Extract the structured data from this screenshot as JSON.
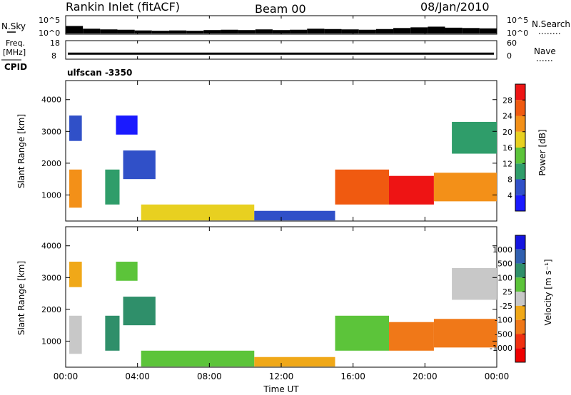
{
  "chart_data": [
    {
      "type": "line",
      "panel": "noise",
      "header": {
        "station": "Rankin Inlet (fitACF)",
        "beam": "Beam 00",
        "date": "08/Jan/2010"
      },
      "left_label": "N.Sky",
      "right_label": "N.Search",
      "left_ticks": [
        "10^5",
        "10^0"
      ],
      "right_ticks": [
        "10^5",
        "10^0"
      ],
      "x_ticks": [
        "00:00",
        "04:00",
        "08:00",
        "12:00",
        "16:00",
        "20:00",
        "00:00"
      ],
      "series": [
        {
          "values": [
            2.2,
            1.4,
            1.2,
            1.1,
            0.9,
            0.8,
            0.9,
            0.8,
            1.0,
            1.1,
            1.0,
            1.2,
            1.0,
            1.1,
            1.4,
            1.3,
            1.2,
            1.1,
            1.3,
            1.6,
            1.8,
            2.0,
            1.7,
            1.6,
            1.5
          ]
        }
      ]
    },
    {
      "type": "line",
      "panel": "frequency",
      "left_label": "Freq. [MHz]",
      "sub_label": "CPID",
      "right_label": "Nave",
      "left_ticks": [
        "18",
        "8"
      ],
      "right_ticks": [
        "60",
        "0"
      ],
      "freq_mhz": 11.0,
      "cpid_text": "ulfscan -3350"
    },
    {
      "type": "heatmap",
      "panel": "power",
      "ylabel": "Slant Range [km]",
      "y_ticks": [
        1000,
        2000,
        3000,
        4000
      ],
      "ylim": [
        180,
        4600
      ],
      "xlabel": "",
      "x_range_hours": [
        0,
        24
      ],
      "colorbar": {
        "label": "Power [dB]",
        "ticks": [
          4,
          8,
          12,
          16,
          20,
          24,
          28
        ],
        "range": [
          0,
          32
        ],
        "colors": [
          "#1a1aff",
          "#3050c8",
          "#2f9d6a",
          "#5cc43a",
          "#e8d020",
          "#f39018",
          "#f05a10",
          "#ee1414"
        ]
      },
      "cells": [
        [
          0.2,
          0.9,
          600,
          1800,
          0.72
        ],
        [
          0.2,
          0.9,
          2700,
          3500,
          0.2
        ],
        [
          2.2,
          3.0,
          700,
          1800,
          0.35
        ],
        [
          3.2,
          5.0,
          1500,
          2400,
          0.22
        ],
        [
          2.8,
          4.0,
          2900,
          3500,
          0.12
        ],
        [
          4.2,
          10.5,
          200,
          700,
          0.62
        ],
        [
          10.5,
          15.0,
          200,
          500,
          0.15
        ],
        [
          15.0,
          18.0,
          700,
          1800,
          0.78
        ],
        [
          18.0,
          20.5,
          700,
          1600,
          0.88
        ],
        [
          20.5,
          24.0,
          800,
          1700,
          0.72
        ],
        [
          21.5,
          24.0,
          2300,
          3300,
          0.25
        ]
      ]
    },
    {
      "type": "heatmap",
      "panel": "velocity",
      "ylabel": "Slant Range [km]",
      "y_ticks": [
        1000,
        2000,
        3000,
        4000
      ],
      "ylim": [
        180,
        4600
      ],
      "xlabel": "Time UT",
      "x_range_hours": [
        0,
        24
      ],
      "colorbar": {
        "label": "Velocity [m s⁻¹]",
        "ticks": [
          1000,
          500,
          100,
          25,
          -25,
          -100,
          -500,
          -1000
        ],
        "colors": [
          "#1414e0",
          "#3060b0",
          "#2f8f6a",
          "#5cc43a",
          "#c8c8c8",
          "#f0a818",
          "#f07818",
          "#f03010",
          "#ee0000"
        ]
      },
      "cells": [
        [
          0.2,
          0.9,
          600,
          1800,
          4
        ],
        [
          0.2,
          0.9,
          2700,
          3500,
          5
        ],
        [
          2.2,
          3.0,
          700,
          1800,
          2
        ],
        [
          3.2,
          5.0,
          1500,
          2400,
          2
        ],
        [
          2.8,
          4.0,
          2900,
          3500,
          3
        ],
        [
          4.2,
          10.5,
          200,
          700,
          3
        ],
        [
          10.5,
          15.0,
          200,
          500,
          5
        ],
        [
          15.0,
          18.0,
          700,
          1800,
          3
        ],
        [
          18.0,
          20.5,
          700,
          1600,
          6
        ],
        [
          20.5,
          24.0,
          800,
          1700,
          6
        ],
        [
          21.5,
          24.0,
          2300,
          3300,
          4
        ]
      ]
    }
  ]
}
